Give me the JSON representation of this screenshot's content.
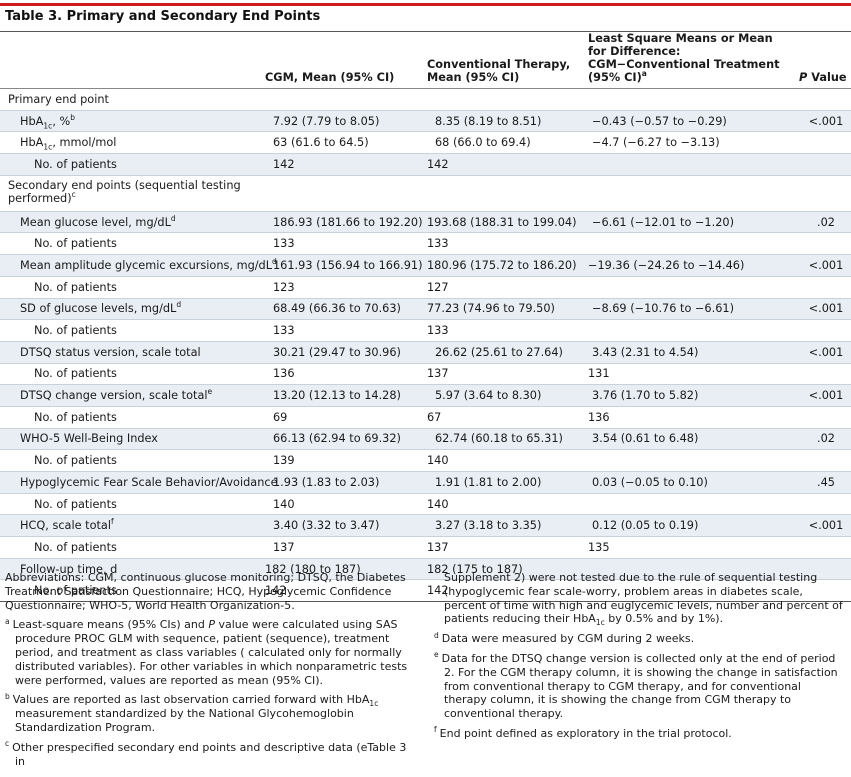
{
  "title": "Table 3. Primary and Secondary End Points",
  "header": {
    "col_cgm": "CGM, Mean (95% CI)",
    "col_conv": "Conventional Therapy, Mean (95% CI)",
    "col_diff": "Least Square Means or Mean for Difference: CGM−Conventional Treatment (95% CI)",
    "col_diff_sup": "a",
    "col_p_italic": "P",
    "col_p_rest": " Value"
  },
  "rows": {
    "primary": "Primary end point",
    "hba1c_pct": {
      "pre": "HbA",
      "sub": "1c",
      "post": ", %",
      "sup": "b",
      "cgm": "7.92 (7.79 to 8.05)",
      "conv": "8.35 (8.19 to 8.51)",
      "diff": "−0.43 (−0.57 to −0.29)",
      "p": "<.001"
    },
    "hba1c_mmol": {
      "pre": "HbA",
      "sub": "1c",
      "post": ", mmol/mol",
      "cgm": "63 (61.6 to 64.5)",
      "conv": "68 (66.0 to 69.4)",
      "diff": "−4.7 (−6.27 to −3.13)",
      "p": ""
    },
    "n_primary": {
      "label": "No. of patients",
      "cgm": "142",
      "conv": "142"
    },
    "secondary": {
      "label": "Secondary end points (sequential testing performed)",
      "sup": "c"
    },
    "glucose": {
      "label": "Mean glucose level, mg/dL",
      "sup": "d",
      "cgm": "186.93 (181.66 to 192.20)",
      "conv": "193.68 (188.31 to 199.04)",
      "diff": "−6.61 (−12.01 to −1.20)",
      "p": ".02"
    },
    "n_glucose": {
      "label": "No. of patients",
      "cgm": "133",
      "conv": "133"
    },
    "mage": {
      "label": "Mean amplitude glycemic excursions, mg/dL",
      "sup": "d",
      "cgm": "161.93 (156.94 to 166.91)",
      "conv": "180.96 (175.72 to 186.20)",
      "diff": "−19.36 (−24.26 to −14.46)",
      "p": "<.001"
    },
    "n_mage": {
      "label": "No. of patients",
      "cgm": "123",
      "conv": "127"
    },
    "sd": {
      "label": "SD of glucose levels, mg/dL",
      "sup": "d",
      "cgm": "68.49 (66.36 to 70.63)",
      "conv": "77.23 (74.96 to 79.50)",
      "diff": "−8.69 (−10.76 to −6.61)",
      "p": "<.001"
    },
    "n_sd": {
      "label": "No. of patients",
      "cgm": "133",
      "conv": "133"
    },
    "dtsqs": {
      "label": "DTSQ status version, scale total",
      "cgm": "30.21 (29.47 to 30.96)",
      "conv": "26.62 (25.61 to 27.64)",
      "diff": "3.43 (2.31 to 4.54)",
      "p": "<.001"
    },
    "n_dtsqs": {
      "label": "No. of patients",
      "cgm": "136",
      "conv": "137",
      "diff": "131"
    },
    "dtsqc": {
      "label": "DTSQ change version, scale total",
      "sup": "e",
      "cgm": "13.20 (12.13 to 14.28)",
      "conv": "5.97 (3.64 to 8.30)",
      "diff": "3.76 (1.70 to 5.82)",
      "p": "<.001"
    },
    "n_dtsqc": {
      "label": "No. of patients",
      "cgm": "69",
      "conv": "67",
      "diff": "136"
    },
    "who5": {
      "label": "WHO-5 Well-Being Index",
      "cgm": "66.13 (62.94 to 69.32)",
      "conv": "62.74 (60.18 to 65.31)",
      "diff": "3.54 (0.61 to 6.48)",
      "p": ".02"
    },
    "n_who5": {
      "label": "No. of patients",
      "cgm": "139",
      "conv": "140"
    },
    "hfs": {
      "label": "Hypoglycemic Fear Scale Behavior/Avoidance",
      "cgm": "1.93 (1.83 to 2.03)",
      "conv": "1.91 (1.81 to 2.00)",
      "diff": "0.03 (−0.05 to 0.10)",
      "p": ".45"
    },
    "n_hfs": {
      "label": "No. of patients",
      "cgm": "140",
      "conv": "140"
    },
    "hcq": {
      "label": "HCQ, scale total",
      "sup": "f",
      "cgm": "3.40 (3.32 to 3.47)",
      "conv": "3.27 (3.18 to 3.35)",
      "diff": "0.12 (0.05 to 0.19)",
      "p": "<.001"
    },
    "n_hcq": {
      "label": "No. of patients",
      "cgm": "137",
      "conv": "137",
      "diff": "135"
    },
    "followup": {
      "label": "Follow-up time, d",
      "cgm": "182 (180 to 187)",
      "conv": "182 (175 to 187)"
    },
    "n_followup": {
      "label": "No. of patients",
      "cgm": "142",
      "conv": "142"
    }
  },
  "footnotes": {
    "abbrev": "Abbreviations: CGM, continuous glucose monitoring; DTSQ, the Diabetes Treatment Satisfaction Questionnaire; HCQ, Hypoglycemic Confidence Questionnaire; WHO-5, World Health Organization-5.",
    "a": {
      "mark": "a",
      "text1": "Least-square means (95% CIs) and ",
      "italic": "P",
      "text2": " value were calculated using SAS procedure PROC GLM with sequence, patient (sequence), treatment period, and treatment as class variables ( calculated only for normally distributed variables). For other variables in which nonparametric tests were performed, values are reported as mean (95% CI)."
    },
    "b": {
      "mark": "b",
      "text1": "Values are reported as last observation carried forward with HbA",
      "sub": "1c",
      "text2": " measurement standardized by the National Glycohemoglobin Standardization Program."
    },
    "c": {
      "mark": "c",
      "text": "Other prespecified secondary end points and descriptive data (eTable 3 in",
      "cont_pre": "Supplement 2) were not tested due to the rule of sequential testing (hypoglycemic fear scale-worry, problem areas in diabetes scale, percent of time with high and euglycemic levels, number and percent of patients reducing their HbA",
      "cont_sub": "1c",
      "cont_post": " by 0.5% and by 1%)."
    },
    "d": {
      "mark": "d",
      "text": "Data were measured by CGM during 2 weeks."
    },
    "e": {
      "mark": "e",
      "text": "Data for the DTSQ change version is collected only at the end of period 2. For the CGM therapy column, it is showing the change in satisfaction from conventional therapy to CGM therapy, and for conventional therapy column, it is showing the change from CGM therapy to conventional therapy."
    },
    "f": {
      "mark": "f",
      "text": "End point defined as exploratory in the trial protocol."
    }
  }
}
